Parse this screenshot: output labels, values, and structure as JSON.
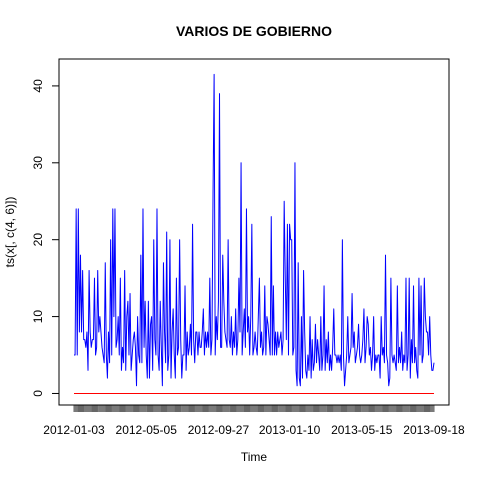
{
  "chart_data": {
    "type": "line",
    "title": "VARIOS DE GOBIERNO",
    "xlabel": "Time",
    "ylabel": "ts(x[, c(4, 6)])",
    "ylim": [
      -1.5,
      43.5
    ],
    "yticks": [
      0,
      10,
      20,
      30,
      40
    ],
    "xtick_labels": [
      "2012-01-03",
      "2012-05-05",
      "2012-09-27",
      "2013-01-10",
      "2013-05-15",
      "2013-09-18"
    ],
    "grid": false,
    "legend": "none",
    "series": [
      {
        "color": "#0000ff",
        "values": [
          5,
          5,
          24,
          5,
          24,
          8,
          18,
          8,
          16,
          7,
          7,
          6,
          8,
          3,
          16,
          8,
          6,
          7,
          7,
          15,
          5,
          6,
          16,
          8,
          10,
          8,
          6,
          5,
          4,
          17,
          5,
          2,
          8,
          4,
          20,
          5,
          24,
          10,
          24,
          6,
          7,
          10,
          5,
          15,
          3,
          6,
          4,
          16,
          3,
          10,
          12,
          5,
          13,
          3,
          5,
          7,
          8,
          6,
          1,
          10,
          5,
          4,
          18,
          4,
          24,
          6,
          12,
          5,
          2,
          12,
          2,
          9,
          10,
          3,
          20,
          7,
          5,
          24,
          5,
          3,
          12,
          6,
          1,
          17,
          8,
          4,
          21,
          3,
          5,
          20,
          2,
          8,
          11,
          5,
          2,
          15,
          5,
          6,
          20,
          7,
          2,
          5,
          5,
          14,
          3,
          8,
          5,
          6,
          9,
          5,
          22,
          7,
          4,
          8,
          8,
          5,
          8,
          6,
          6,
          8,
          11,
          5,
          8,
          6,
          8,
          6,
          15,
          5,
          7,
          26,
          41.5,
          5,
          10,
          7,
          12,
          39,
          6,
          6,
          18,
          12,
          8,
          7,
          6,
          20,
          7,
          6,
          10,
          5,
          8,
          6,
          11,
          5,
          7,
          15,
          8,
          30,
          5,
          8,
          11,
          6,
          24,
          8,
          10,
          5,
          10,
          22,
          5,
          6,
          8,
          6,
          5,
          10,
          15,
          6,
          8,
          5,
          6,
          14,
          5,
          10,
          9,
          7,
          5,
          23,
          5,
          14,
          5,
          8,
          5,
          8,
          6,
          7,
          8,
          5,
          7,
          25,
          15,
          7,
          22,
          5,
          22,
          20,
          20,
          5,
          6,
          30,
          3,
          1,
          17,
          2,
          1,
          10,
          2,
          16,
          8,
          3,
          2,
          5,
          3,
          10,
          2,
          7,
          3,
          4,
          9,
          4,
          7,
          5,
          3,
          10,
          3,
          5,
          14,
          3,
          7,
          4,
          8,
          3,
          5,
          3,
          6,
          11,
          5,
          5,
          4,
          5,
          4,
          5,
          3,
          20,
          5,
          1,
          3,
          5,
          10,
          4,
          5,
          6,
          13,
          6,
          8,
          4,
          5,
          6,
          9,
          5,
          4,
          5,
          7,
          11,
          4,
          6,
          10,
          9,
          5,
          6,
          3,
          5,
          10,
          3,
          5,
          4,
          5,
          5,
          2,
          10,
          5,
          6,
          4,
          18,
          5,
          4,
          1,
          2,
          15,
          5,
          4,
          5,
          4,
          3,
          14,
          4,
          6,
          4,
          8,
          3,
          5,
          4,
          15,
          3,
          5,
          15,
          2,
          7,
          4,
          14,
          4,
          6,
          3,
          2,
          15,
          5,
          14,
          4,
          5,
          15,
          10,
          8,
          8,
          5,
          10,
          5,
          3,
          3,
          4
        ]
      },
      {
        "color": "#ff0000",
        "value_constant": 0
      }
    ]
  }
}
